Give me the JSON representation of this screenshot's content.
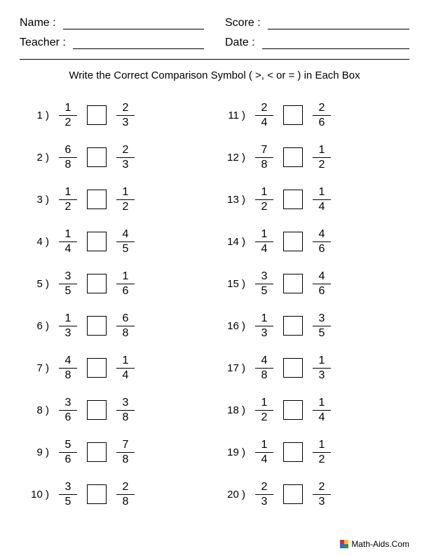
{
  "header": {
    "name_label": "Name :",
    "teacher_label": "Teacher :",
    "score_label": "Score :",
    "date_label": "Date :"
  },
  "instructions": "Write the Correct Comparison Symbol (  >, < or = ) in Each Box",
  "problems": [
    {
      "n": "1 )",
      "a_num": "1",
      "a_den": "2",
      "b_num": "2",
      "b_den": "3"
    },
    {
      "n": "2 )",
      "a_num": "6",
      "a_den": "8",
      "b_num": "2",
      "b_den": "3"
    },
    {
      "n": "3 )",
      "a_num": "1",
      "a_den": "2",
      "b_num": "1",
      "b_den": "2"
    },
    {
      "n": "4 )",
      "a_num": "1",
      "a_den": "4",
      "b_num": "4",
      "b_den": "5"
    },
    {
      "n": "5 )",
      "a_num": "3",
      "a_den": "5",
      "b_num": "1",
      "b_den": "6"
    },
    {
      "n": "6 )",
      "a_num": "1",
      "a_den": "3",
      "b_num": "6",
      "b_den": "8"
    },
    {
      "n": "7 )",
      "a_num": "4",
      "a_den": "8",
      "b_num": "1",
      "b_den": "4"
    },
    {
      "n": "8 )",
      "a_num": "3",
      "a_den": "6",
      "b_num": "3",
      "b_den": "8"
    },
    {
      "n": "9 )",
      "a_num": "5",
      "a_den": "6",
      "b_num": "7",
      "b_den": "8"
    },
    {
      "n": "10 )",
      "a_num": "3",
      "a_den": "5",
      "b_num": "2",
      "b_den": "8"
    },
    {
      "n": "11 )",
      "a_num": "2",
      "a_den": "4",
      "b_num": "2",
      "b_den": "6"
    },
    {
      "n": "12 )",
      "a_num": "7",
      "a_den": "8",
      "b_num": "1",
      "b_den": "2"
    },
    {
      "n": "13 )",
      "a_num": "1",
      "a_den": "2",
      "b_num": "1",
      "b_den": "4"
    },
    {
      "n": "14 )",
      "a_num": "1",
      "a_den": "4",
      "b_num": "4",
      "b_den": "6"
    },
    {
      "n": "15 )",
      "a_num": "3",
      "a_den": "5",
      "b_num": "4",
      "b_den": "6"
    },
    {
      "n": "16 )",
      "a_num": "1",
      "a_den": "3",
      "b_num": "3",
      "b_den": "5"
    },
    {
      "n": "17 )",
      "a_num": "4",
      "a_den": "8",
      "b_num": "1",
      "b_den": "3"
    },
    {
      "n": "18 )",
      "a_num": "1",
      "a_den": "2",
      "b_num": "1",
      "b_den": "4"
    },
    {
      "n": "19 )",
      "a_num": "1",
      "a_den": "4",
      "b_num": "1",
      "b_den": "2"
    },
    {
      "n": "20 )",
      "a_num": "2",
      "a_den": "3",
      "b_num": "2",
      "b_den": "3"
    }
  ],
  "footer": {
    "text": "Math-Aids.Com"
  }
}
